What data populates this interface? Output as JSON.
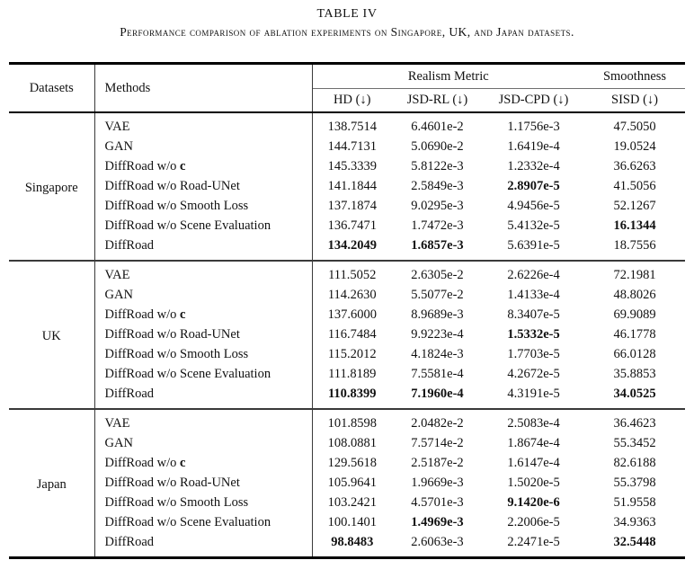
{
  "caption": {
    "title": "TABLE IV",
    "subtitle": "Performance comparison of ablation experiments on Singapore, UK, and Japan datasets."
  },
  "colors": {
    "text": "#111111",
    "thick_rule": "#000000",
    "divider": "#3a3a3a",
    "sub_rule": "#6e6e6e",
    "background": "#ffffff"
  },
  "table": {
    "columns": {
      "datasets": "Datasets",
      "methods": "Methods",
      "group_realism": "Realism Metric",
      "group_smoothness": "Smoothness",
      "metrics": [
        "HD (↓)",
        "JSD-RL (↓)",
        "JSD-CPD (↓)",
        "SISD (↓)"
      ]
    },
    "sections": [
      {
        "dataset": "Singapore",
        "rows": [
          {
            "method": "VAE",
            "values": [
              "138.7514",
              "6.4601e-2",
              "1.1756e-3",
              "47.5050"
            ],
            "bold": []
          },
          {
            "method": "GAN",
            "values": [
              "144.7131",
              "5.0690e-2",
              "1.6419e-4",
              "19.0524"
            ],
            "bold": []
          },
          {
            "method": "DiffRoad w/o",
            "method_bold": "c",
            "values": [
              "145.3339",
              "5.8122e-3",
              "1.2332e-4",
              "36.6263"
            ],
            "bold": []
          },
          {
            "method": "DiffRoad w/o Road-UNet",
            "values": [
              "141.1844",
              "2.5849e-3",
              "2.8907e-5",
              "41.5056"
            ],
            "bold": [
              2
            ]
          },
          {
            "method": "DiffRoad w/o Smooth Loss",
            "values": [
              "137.1874",
              "9.0295e-3",
              "4.9456e-5",
              "52.1267"
            ],
            "bold": []
          },
          {
            "method": "DiffRoad w/o Scene Evaluation",
            "values": [
              "136.7471",
              "1.7472e-3",
              "5.4132e-5",
              "16.1344"
            ],
            "bold": [
              3
            ]
          },
          {
            "method": "DiffRoad",
            "values": [
              "134.2049",
              "1.6857e-3",
              "5.6391e-5",
              "18.7556"
            ],
            "bold": [
              0,
              1
            ]
          }
        ]
      },
      {
        "dataset": "UK",
        "rows": [
          {
            "method": "VAE",
            "values": [
              "111.5052",
              "2.6305e-2",
              "2.6226e-4",
              "72.1981"
            ],
            "bold": []
          },
          {
            "method": "GAN",
            "values": [
              "114.2630",
              "5.5077e-2",
              "1.4133e-4",
              "48.8026"
            ],
            "bold": []
          },
          {
            "method": "DiffRoad w/o",
            "method_bold": "c",
            "values": [
              "137.6000",
              "8.9689e-3",
              "8.3407e-5",
              "69.9089"
            ],
            "bold": []
          },
          {
            "method": "DiffRoad w/o Road-UNet",
            "values": [
              "116.7484",
              "9.9223e-4",
              "1.5332e-5",
              "46.1778"
            ],
            "bold": [
              2
            ]
          },
          {
            "method": "DiffRoad w/o Smooth Loss",
            "values": [
              "115.2012",
              "4.1824e-3",
              "1.7703e-5",
              "66.0128"
            ],
            "bold": []
          },
          {
            "method": "DiffRoad w/o Scene Evaluation",
            "values": [
              "111.8189",
              "7.5581e-4",
              "4.2672e-5",
              "35.8853"
            ],
            "bold": []
          },
          {
            "method": "DiffRoad",
            "values": [
              "110.8399",
              "7.1960e-4",
              "4.3191e-5",
              "34.0525"
            ],
            "bold": [
              0,
              1,
              3
            ]
          }
        ]
      },
      {
        "dataset": "Japan",
        "rows": [
          {
            "method": "VAE",
            "values": [
              "101.8598",
              "2.0482e-2",
              "2.5083e-4",
              "36.4623"
            ],
            "bold": []
          },
          {
            "method": "GAN",
            "values": [
              "108.0881",
              "7.5714e-2",
              "1.8674e-4",
              "55.3452"
            ],
            "bold": []
          },
          {
            "method": "DiffRoad w/o",
            "method_bold": "c",
            "values": [
              "129.5618",
              "2.5187e-2",
              "1.6147e-4",
              "82.6188"
            ],
            "bold": []
          },
          {
            "method": "DiffRoad w/o Road-UNet",
            "values": [
              "105.9641",
              "1.9669e-3",
              "1.5020e-5",
              "55.3798"
            ],
            "bold": []
          },
          {
            "method": "DiffRoad w/o Smooth Loss",
            "values": [
              "103.2421",
              "4.5701e-3",
              "9.1420e-6",
              "51.9558"
            ],
            "bold": [
              2
            ]
          },
          {
            "method": "DiffRoad w/o Scene Evaluation",
            "values": [
              "100.1401",
              "1.4969e-3",
              "2.2006e-5",
              "34.9363"
            ],
            "bold": [
              1
            ]
          },
          {
            "method": "DiffRoad",
            "values": [
              "98.8483",
              "2.6063e-3",
              "2.2471e-5",
              "32.5448"
            ],
            "bold": [
              0,
              3
            ]
          }
        ]
      }
    ]
  }
}
